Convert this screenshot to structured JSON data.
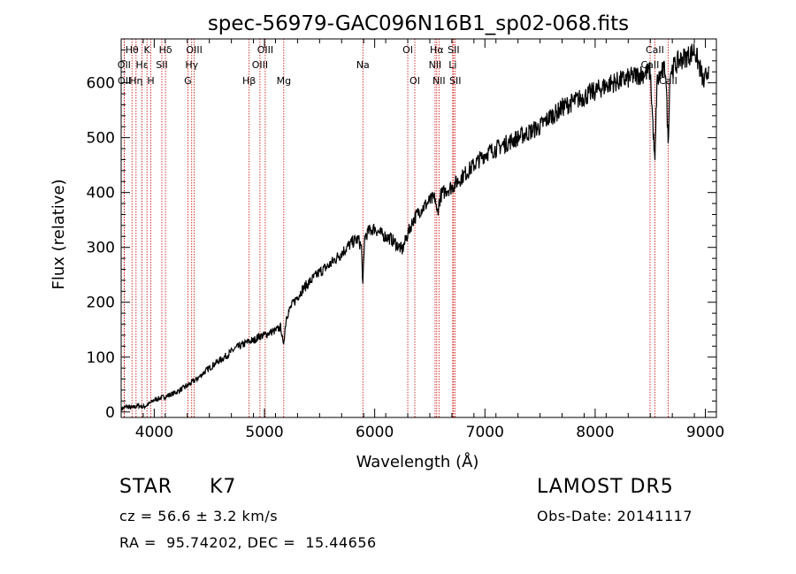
{
  "chart_data": {
    "type": "line",
    "title": "spec-56979-GAC096N16B1_sp02-068.fits",
    "xlabel": "Wavelength (Å)",
    "ylabel": "Flux (relative)",
    "xlim": [
      3700,
      9100
    ],
    "ylim": [
      -10,
      680
    ],
    "xticks": [
      4000,
      5000,
      6000,
      7000,
      8000,
      9000
    ],
    "yticks": [
      0,
      100,
      200,
      300,
      400,
      500,
      600
    ],
    "grid": false,
    "line_color": "#000000",
    "line_marker_color": "#cc0000",
    "series": [
      {
        "x": [
          3700,
          3750,
          3800,
          3850,
          3900,
          3950,
          4000,
          4050,
          4100,
          4150,
          4200,
          4250,
          4300,
          4350,
          4400,
          4450,
          4500,
          4550,
          4600,
          4650,
          4700,
          4750,
          4800,
          4850,
          4900,
          4950,
          5000,
          5050,
          5100,
          5150,
          5170,
          5200,
          5250,
          5300,
          5350,
          5400,
          5450,
          5500,
          5550,
          5600,
          5650,
          5700,
          5750,
          5800,
          5850,
          5880,
          5893,
          5910,
          5950,
          6000,
          6050,
          6100,
          6150,
          6200,
          6250,
          6300,
          6350,
          6400,
          6450,
          6500,
          6550,
          6563,
          6600,
          6650,
          6700,
          6750,
          6800,
          6850,
          6900,
          6950,
          7000,
          7050,
          7100,
          7150,
          7200,
          7250,
          7300,
          7350,
          7400,
          7450,
          7500,
          7550,
          7600,
          7650,
          7700,
          7750,
          7800,
          7850,
          7900,
          7950,
          8000,
          8050,
          8100,
          8150,
          8200,
          8250,
          8300,
          8350,
          8400,
          8450,
          8500,
          8520,
          8542,
          8560,
          8600,
          8640,
          8662,
          8680,
          8720,
          8760,
          8800,
          8850,
          8900,
          8930,
          8960,
          8990,
          9000,
          9030
        ],
        "y": [
          5,
          10,
          7,
          12,
          9,
          14,
          22,
          25,
          28,
          32,
          36,
          42,
          48,
          55,
          62,
          72,
          80,
          88,
          95,
          102,
          110,
          118,
          122,
          128,
          130,
          138,
          140,
          145,
          148,
          155,
          120,
          175,
          195,
          210,
          225,
          235,
          245,
          255,
          262,
          270,
          280,
          290,
          300,
          310,
          315,
          300,
          230,
          320,
          330,
          335,
          325,
          320,
          315,
          305,
          295,
          325,
          350,
          365,
          375,
          385,
          390,
          360,
          395,
          405,
          410,
          420,
          430,
          440,
          450,
          460,
          470,
          475,
          480,
          485,
          490,
          495,
          500,
          505,
          510,
          515,
          520,
          530,
          540,
          545,
          555,
          560,
          565,
          570,
          575,
          580,
          585,
          590,
          595,
          600,
          602,
          605,
          608,
          612,
          615,
          618,
          620,
          540,
          450,
          600,
          618,
          625,
          490,
          620,
          630,
          640,
          645,
          650,
          660,
          640,
          620,
          595,
          610,
          630
        ]
      }
    ],
    "lines": [
      {
        "label": "Hθ",
        "x": 3798,
        "row": 0
      },
      {
        "label": "OII",
        "x": 3727,
        "row": 1
      },
      {
        "label": "OII",
        "x": 3729,
        "row": 2
      },
      {
        "label": "K",
        "x": 3934,
        "row": 0
      },
      {
        "label": "Hε",
        "x": 3889,
        "row": 1
      },
      {
        "label": "Hη",
        "x": 3835,
        "row": 2
      },
      {
        "label": "H",
        "x": 3969,
        "row": 2
      },
      {
        "label": "Hδ",
        "x": 4102,
        "row": 0
      },
      {
        "label": "SII",
        "x": 4069,
        "row": 1
      },
      {
        "label": "OIII",
        "x": 4363,
        "row": 0
      },
      {
        "label": "Hγ",
        "x": 4340,
        "row": 1
      },
      {
        "label": "G",
        "x": 4305,
        "row": 2
      },
      {
        "label": "OIII",
        "x": 5007,
        "row": 0
      },
      {
        "label": "OIII",
        "x": 4959,
        "row": 1
      },
      {
        "label": "Hβ",
        "x": 4861,
        "row": 2
      },
      {
        "label": "Mg",
        "x": 5175,
        "row": 2
      },
      {
        "label": "Na",
        "x": 5893,
        "row": 1
      },
      {
        "label": "OI",
        "x": 6300,
        "row": 0
      },
      {
        "label": "OI",
        "x": 6364,
        "row": 2
      },
      {
        "label": "Hα",
        "x": 6563,
        "row": 0
      },
      {
        "label": "NII",
        "x": 6548,
        "row": 1
      },
      {
        "label": "NII",
        "x": 6583,
        "row": 2
      },
      {
        "label": "SII",
        "x": 6716,
        "row": 0
      },
      {
        "label": "Li",
        "x": 6708,
        "row": 1
      },
      {
        "label": "SII",
        "x": 6731,
        "row": 2
      },
      {
        "label": "CaII",
        "x": 8542,
        "row": 0
      },
      {
        "label": "CaII",
        "x": 8498,
        "row": 1
      },
      {
        "label": "CaII",
        "x": 8662,
        "row": 2
      }
    ]
  },
  "info": {
    "class": "STAR",
    "subclass": "K7",
    "survey": "LAMOST DR5",
    "cz": "cz = 56.6 ± 3.2 km/s",
    "obs_date": "Obs-Date: 20141117",
    "coords": "RA =  95.74202, DEC =  15.44656"
  }
}
